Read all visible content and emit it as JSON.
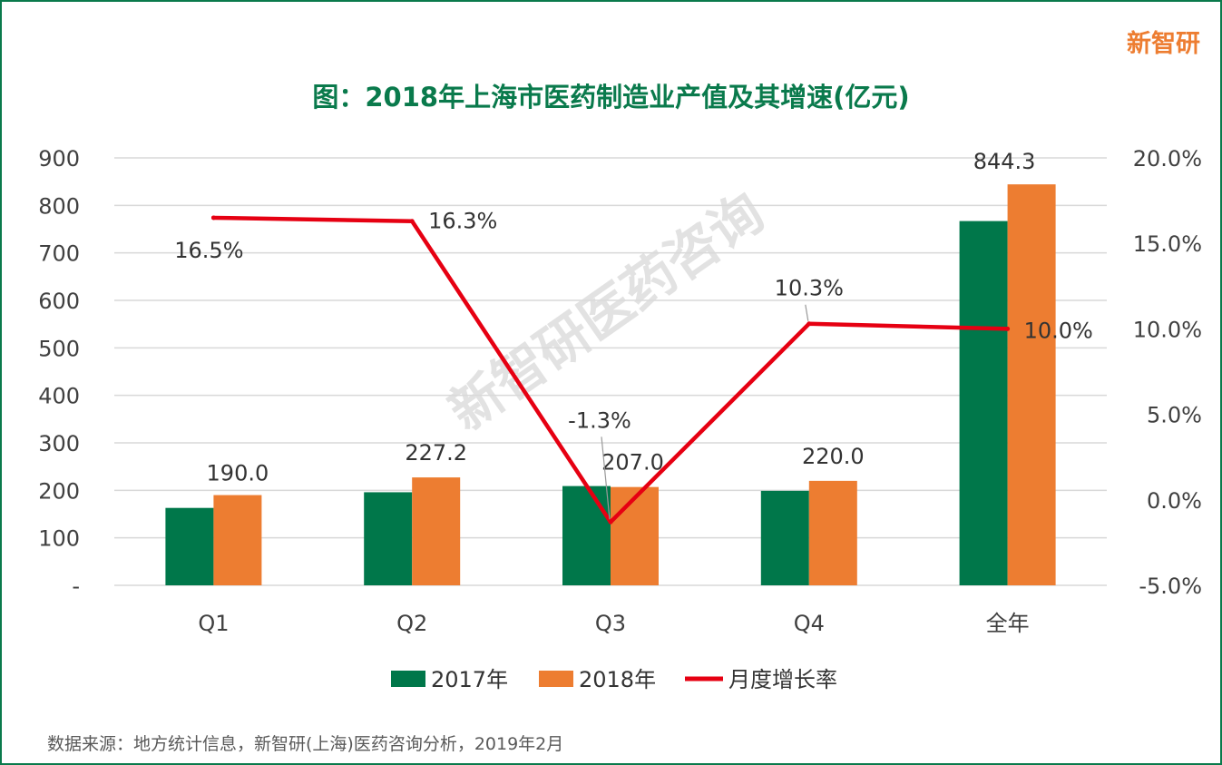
{
  "brand": "新智研",
  "watermark": "新智研医药咨询",
  "source": "数据来源：地方统计信息，新智研(上海)医药咨询分析，2019年2月",
  "colors": {
    "bar2017": "#00774a",
    "bar2018": "#ed7d31",
    "line": "#e60012",
    "title": "#0a7a4c",
    "grid": "#d9d9d9"
  },
  "chart_data": {
    "type": "bar",
    "title": "图：2018年上海市医药制造业产值及其增速(亿元)",
    "categories": [
      "Q1",
      "Q2",
      "Q3",
      "Q4",
      "全年"
    ],
    "series": [
      {
        "name": "2017年",
        "type": "bar",
        "axis": "left",
        "values": [
          163,
          196,
          209,
          199,
          767
        ]
      },
      {
        "name": "2018年",
        "type": "bar",
        "axis": "left",
        "values": [
          190.0,
          227.2,
          207.0,
          220.0,
          844.3
        ]
      },
      {
        "name": "月度增长率",
        "type": "line",
        "axis": "right",
        "values": [
          16.5,
          16.3,
          -1.3,
          10.3,
          10.0
        ]
      }
    ],
    "data_labels_2018": [
      "190.0",
      "227.2",
      "207.0",
      "220.0",
      "844.3"
    ],
    "data_labels_rate": [
      "16.5%",
      "16.3%",
      "-1.3%",
      "10.3%",
      "10.0%"
    ],
    "y_left": {
      "min": 0,
      "max": 900,
      "ticks": [
        "-",
        "100",
        "200",
        "300",
        "400",
        "500",
        "600",
        "700",
        "800",
        "900"
      ]
    },
    "y_right": {
      "min": -5,
      "max": 20,
      "ticks": [
        "-5.0%",
        "0.0%",
        "5.0%",
        "10.0%",
        "15.0%",
        "20.0%"
      ]
    },
    "grid": true,
    "legend": {
      "position": "bottom",
      "entries": [
        "2017年",
        "2018年",
        "月度增长率"
      ]
    }
  }
}
